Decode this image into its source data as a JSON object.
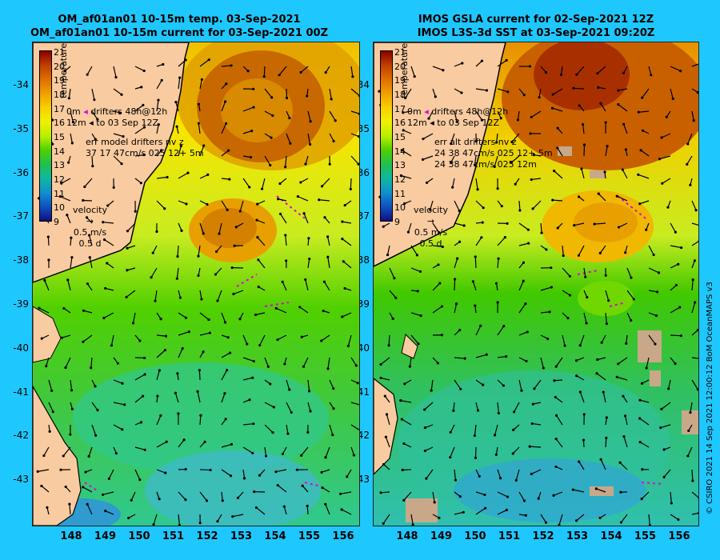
{
  "left_panel": {
    "title_line1": "OM_af01an01 10-15m temp. 03-Sep-2021",
    "title_line2": "OM_af01an01 10-15m current for 03-Sep-2021 00Z",
    "legend": {
      "drifters_line1_prefix": "0m",
      "drifters_line1": "drifters 48h@12h",
      "drifters_line2_prefix": "12m",
      "drifters_line2": "to 03 Sep 12Z",
      "err_title": "err model drifters nv z",
      "err_row1": "37 17 47cm/s 025 12+ 5m"
    },
    "velocity_key": {
      "label": "velocity",
      "speed": "0.5 m/s",
      "duration": "0.5 d"
    }
  },
  "right_panel": {
    "title_line1": "IMOS GSLA current for 02-Sep-2021 12Z",
    "title_line2": "IMOS L3S-3d SST at 03-Sep-2021 09:20Z",
    "legend": {
      "drifters_line1_prefix": "0m",
      "drifters_line1": "drifters 48h@12h",
      "drifters_line2_prefix": "12m",
      "drifters_line2": "to 03 Sep 12Z",
      "err_title": "err alt drifters nv z",
      "err_row1": "24 38 47cm/s 025 12+ 5m",
      "err_row2": "24 38 47cm/s 025 12m"
    },
    "velocity_key": {
      "label": "velocity",
      "speed": "0.5 m/s",
      "duration": "0.5 d"
    }
  },
  "colorbar": {
    "title": "temperature (°C)",
    "labels": [
      "21",
      "20",
      "19",
      "18",
      "17",
      "16",
      "15",
      "14",
      "13",
      "12",
      "11",
      "10",
      "9"
    ],
    "colors": [
      "#8b0000",
      "#c04000",
      "#e07000",
      "#f0a000",
      "#f8d000",
      "#f0f000",
      "#b8f000",
      "#50d000",
      "#20c050",
      "#10b8a0",
      "#1090d0",
      "#1050c0",
      "#101080"
    ]
  },
  "latitude_ticks": [
    "-34",
    "-35",
    "-36",
    "-37",
    "-38",
    "-39",
    "-40",
    "-41",
    "-42",
    "-43"
  ],
  "longitude_ticks": [
    "148",
    "149",
    "150",
    "151",
    "152",
    "153",
    "154",
    "155",
    "156"
  ],
  "credit": "© CSIRO 2021  14 Sep 2021 12:00:12 BoM OceanMAPS v3",
  "colors": {
    "background": "#1ec8ff",
    "land": "#f9cba0",
    "coastline": "#000000",
    "drifter": "#e000e0"
  }
}
